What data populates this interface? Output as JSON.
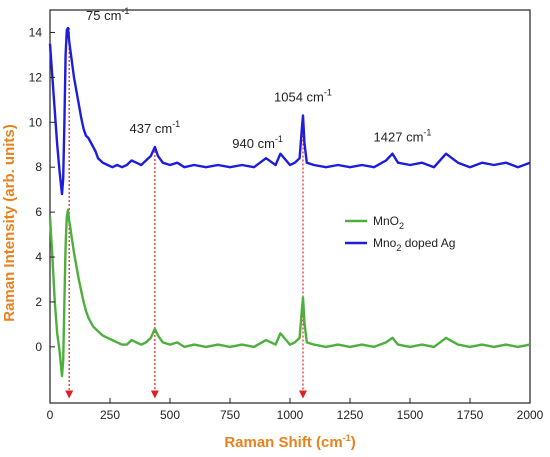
{
  "chart_data": {
    "type": "line",
    "xlabel": {
      "text": "Raman Shift (cm",
      "sup": "-1",
      "tail": ")"
    },
    "ylabel": "Raman Intensity (arb. units)",
    "xlim": [
      0,
      2000
    ],
    "ylim": [
      -2.5,
      15
    ],
    "x_ticks": [
      "0",
      "250",
      "500",
      "750",
      "1000",
      "1250",
      "1500",
      "1750",
      "2000"
    ],
    "y_ticks": [
      "0",
      "2",
      "4",
      "6",
      "8",
      "10",
      "12",
      "14"
    ],
    "grid": false,
    "legend_position": "right-middle",
    "label_color": "#e8821e",
    "guide_color": "#e02020",
    "series": [
      {
        "name": "MnO",
        "name_sub": "2",
        "color": "#4daf3c",
        "x": [
          0,
          10,
          20,
          30,
          40,
          50,
          55,
          60,
          65,
          70,
          75,
          80,
          85,
          90,
          100,
          110,
          120,
          130,
          140,
          150,
          160,
          170,
          180,
          190,
          200,
          220,
          240,
          260,
          280,
          300,
          320,
          340,
          360,
          380,
          400,
          420,
          437,
          450,
          470,
          500,
          530,
          560,
          600,
          650,
          700,
          750,
          800,
          850,
          900,
          940,
          960,
          1000,
          1020,
          1040,
          1050,
          1054,
          1060,
          1070,
          1100,
          1150,
          1200,
          1250,
          1300,
          1350,
          1400,
          1427,
          1450,
          1500,
          1550,
          1600,
          1650,
          1700,
          1750,
          1800,
          1850,
          1900,
          1950,
          2000
        ],
        "y": [
          5.8,
          4.0,
          2.0,
          0.6,
          -0.2,
          -1.3,
          -0.6,
          2.0,
          4.5,
          5.8,
          6.1,
          5.6,
          5.3,
          4.9,
          4.2,
          3.6,
          3.0,
          2.5,
          2.0,
          1.6,
          1.3,
          1.1,
          0.9,
          0.8,
          0.7,
          0.5,
          0.4,
          0.3,
          0.2,
          0.1,
          0.1,
          0.3,
          0.2,
          0.1,
          0.2,
          0.4,
          0.8,
          0.5,
          0.2,
          0.1,
          0.2,
          0.0,
          0.1,
          0.0,
          0.1,
          0.0,
          0.1,
          0.0,
          0.3,
          0.1,
          0.6,
          0.1,
          0.2,
          0.4,
          1.7,
          2.2,
          1.1,
          0.2,
          0.1,
          0.0,
          0.1,
          0.0,
          0.1,
          0.0,
          0.2,
          0.4,
          0.1,
          0.0,
          0.1,
          0.0,
          0.4,
          0.1,
          0.0,
          0.1,
          0.0,
          0.1,
          0.0,
          0.1
        ]
      },
      {
        "name": "Mno",
        "name_sub": "2",
        "name_tail": " doped Ag",
        "color": "#1d1ddb",
        "x": [
          0,
          10,
          20,
          30,
          40,
          50,
          55,
          60,
          65,
          70,
          75,
          80,
          85,
          90,
          100,
          110,
          120,
          130,
          140,
          150,
          160,
          170,
          180,
          190,
          200,
          220,
          240,
          260,
          280,
          300,
          320,
          340,
          360,
          380,
          400,
          420,
          437,
          450,
          470,
          500,
          530,
          560,
          600,
          650,
          700,
          750,
          800,
          850,
          900,
          940,
          960,
          1000,
          1020,
          1040,
          1050,
          1054,
          1060,
          1070,
          1100,
          1150,
          1200,
          1250,
          1300,
          1350,
          1400,
          1427,
          1450,
          1500,
          1550,
          1600,
          1650,
          1700,
          1750,
          1800,
          1850,
          1900,
          1950,
          2000
        ],
        "y": [
          13.5,
          12.0,
          10.5,
          9.0,
          7.8,
          6.8,
          7.5,
          10.0,
          13.0,
          14.1,
          14.2,
          13.6,
          13.2,
          12.8,
          12.0,
          11.4,
          10.8,
          10.2,
          9.7,
          9.4,
          9.3,
          9.1,
          8.9,
          8.7,
          8.4,
          8.2,
          8.1,
          8.0,
          8.1,
          8.0,
          8.1,
          8.3,
          8.2,
          8.1,
          8.3,
          8.5,
          8.9,
          8.5,
          8.2,
          8.1,
          8.2,
          8.0,
          8.1,
          8.0,
          8.1,
          8.0,
          8.1,
          8.0,
          8.4,
          8.1,
          8.6,
          8.1,
          8.2,
          8.4,
          9.8,
          10.3,
          9.1,
          8.2,
          8.1,
          8.0,
          8.1,
          8.0,
          8.1,
          8.0,
          8.3,
          8.6,
          8.2,
          8.1,
          8.2,
          8.0,
          8.6,
          8.2,
          8.0,
          8.2,
          8.1,
          8.2,
          8.0,
          8.2
        ]
      }
    ],
    "annotations": [
      {
        "base": "75 cm",
        "sup": "-1",
        "x": 75,
        "y": 14.2
      },
      {
        "base": "437 cm",
        "sup": "-1",
        "x": 437,
        "y": 8.9
      },
      {
        "base": "940 cm",
        "sup": "-1",
        "x": 940,
        "y": 8.4
      },
      {
        "base": "1054 cm",
        "sup": "-1",
        "x": 1054,
        "y": 10.3
      },
      {
        "base": "1427 cm",
        "sup": "-1",
        "x": 1427,
        "y": 8.6
      }
    ],
    "guide_lines": [
      {
        "x": 80,
        "y_top": 14.2
      },
      {
        "x": 437,
        "y_top": 8.9
      },
      {
        "x": 1054,
        "y_top": 10.3
      }
    ]
  }
}
